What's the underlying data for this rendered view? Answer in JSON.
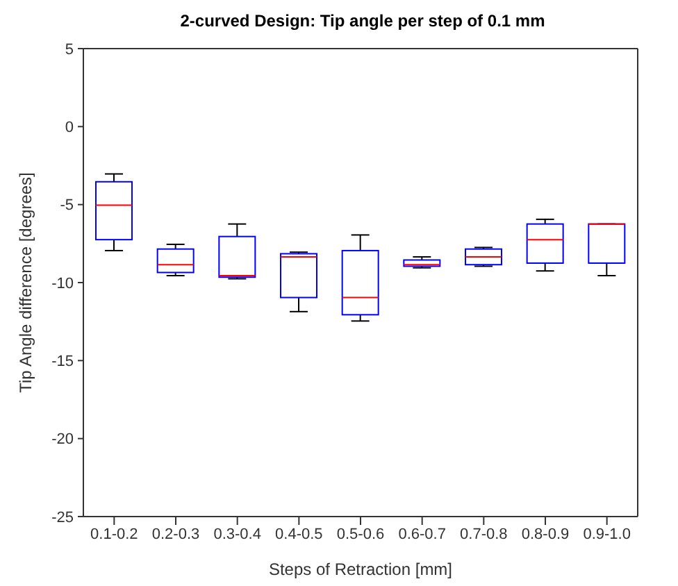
{
  "chart_data": {
    "type": "box",
    "title": "2-curved Design: Tip angle per step of 0.1 mm",
    "xlabel": "Steps of Retraction [mm]",
    "ylabel": "Tip Angle difference [degrees]",
    "categories": [
      "0.1-0.2",
      "0.2-0.3",
      "0.3-0.4",
      "0.4-0.5",
      "0.5-0.6",
      "0.6-0.7",
      "0.7-0.8",
      "0.8-0.9",
      "0.9-1.0"
    ],
    "ylim": [
      -25,
      5
    ],
    "yticks": [
      -25,
      -20,
      -15,
      -10,
      -5,
      0,
      5
    ],
    "series": [
      {
        "color": "#0000ff",
        "boxes": [
          {
            "low": -8.0,
            "q1": -7.3,
            "median": -5.1,
            "q3": -3.6,
            "high": -3.1
          },
          {
            "low": -9.6,
            "q1": -9.4,
            "median": -8.9,
            "q3": -7.9,
            "high": -7.6
          },
          {
            "low": -9.8,
            "q1": -9.7,
            "median": -9.6,
            "q3": -7.1,
            "high": -6.3
          },
          {
            "low": -11.9,
            "q1": -11.0,
            "median": -8.4,
            "q3": -8.2,
            "high": -8.1
          },
          {
            "low": -12.5,
            "q1": -12.1,
            "median": -11.0,
            "q3": -8.0,
            "high": -7.0
          },
          {
            "low": -9.1,
            "q1": -9.0,
            "median": -8.9,
            "q3": -8.6,
            "high": -8.4
          },
          {
            "low": -9.0,
            "q1": -8.9,
            "median": -8.4,
            "q3": -7.9,
            "high": -7.8
          },
          {
            "low": -9.3,
            "q1": -8.8,
            "median": -7.3,
            "q3": -6.3,
            "high": -6.0
          },
          {
            "low": -9.6,
            "q1": -8.8,
            "median": -6.3,
            "q3": -6.3,
            "high": -6.3
          }
        ]
      }
    ]
  }
}
